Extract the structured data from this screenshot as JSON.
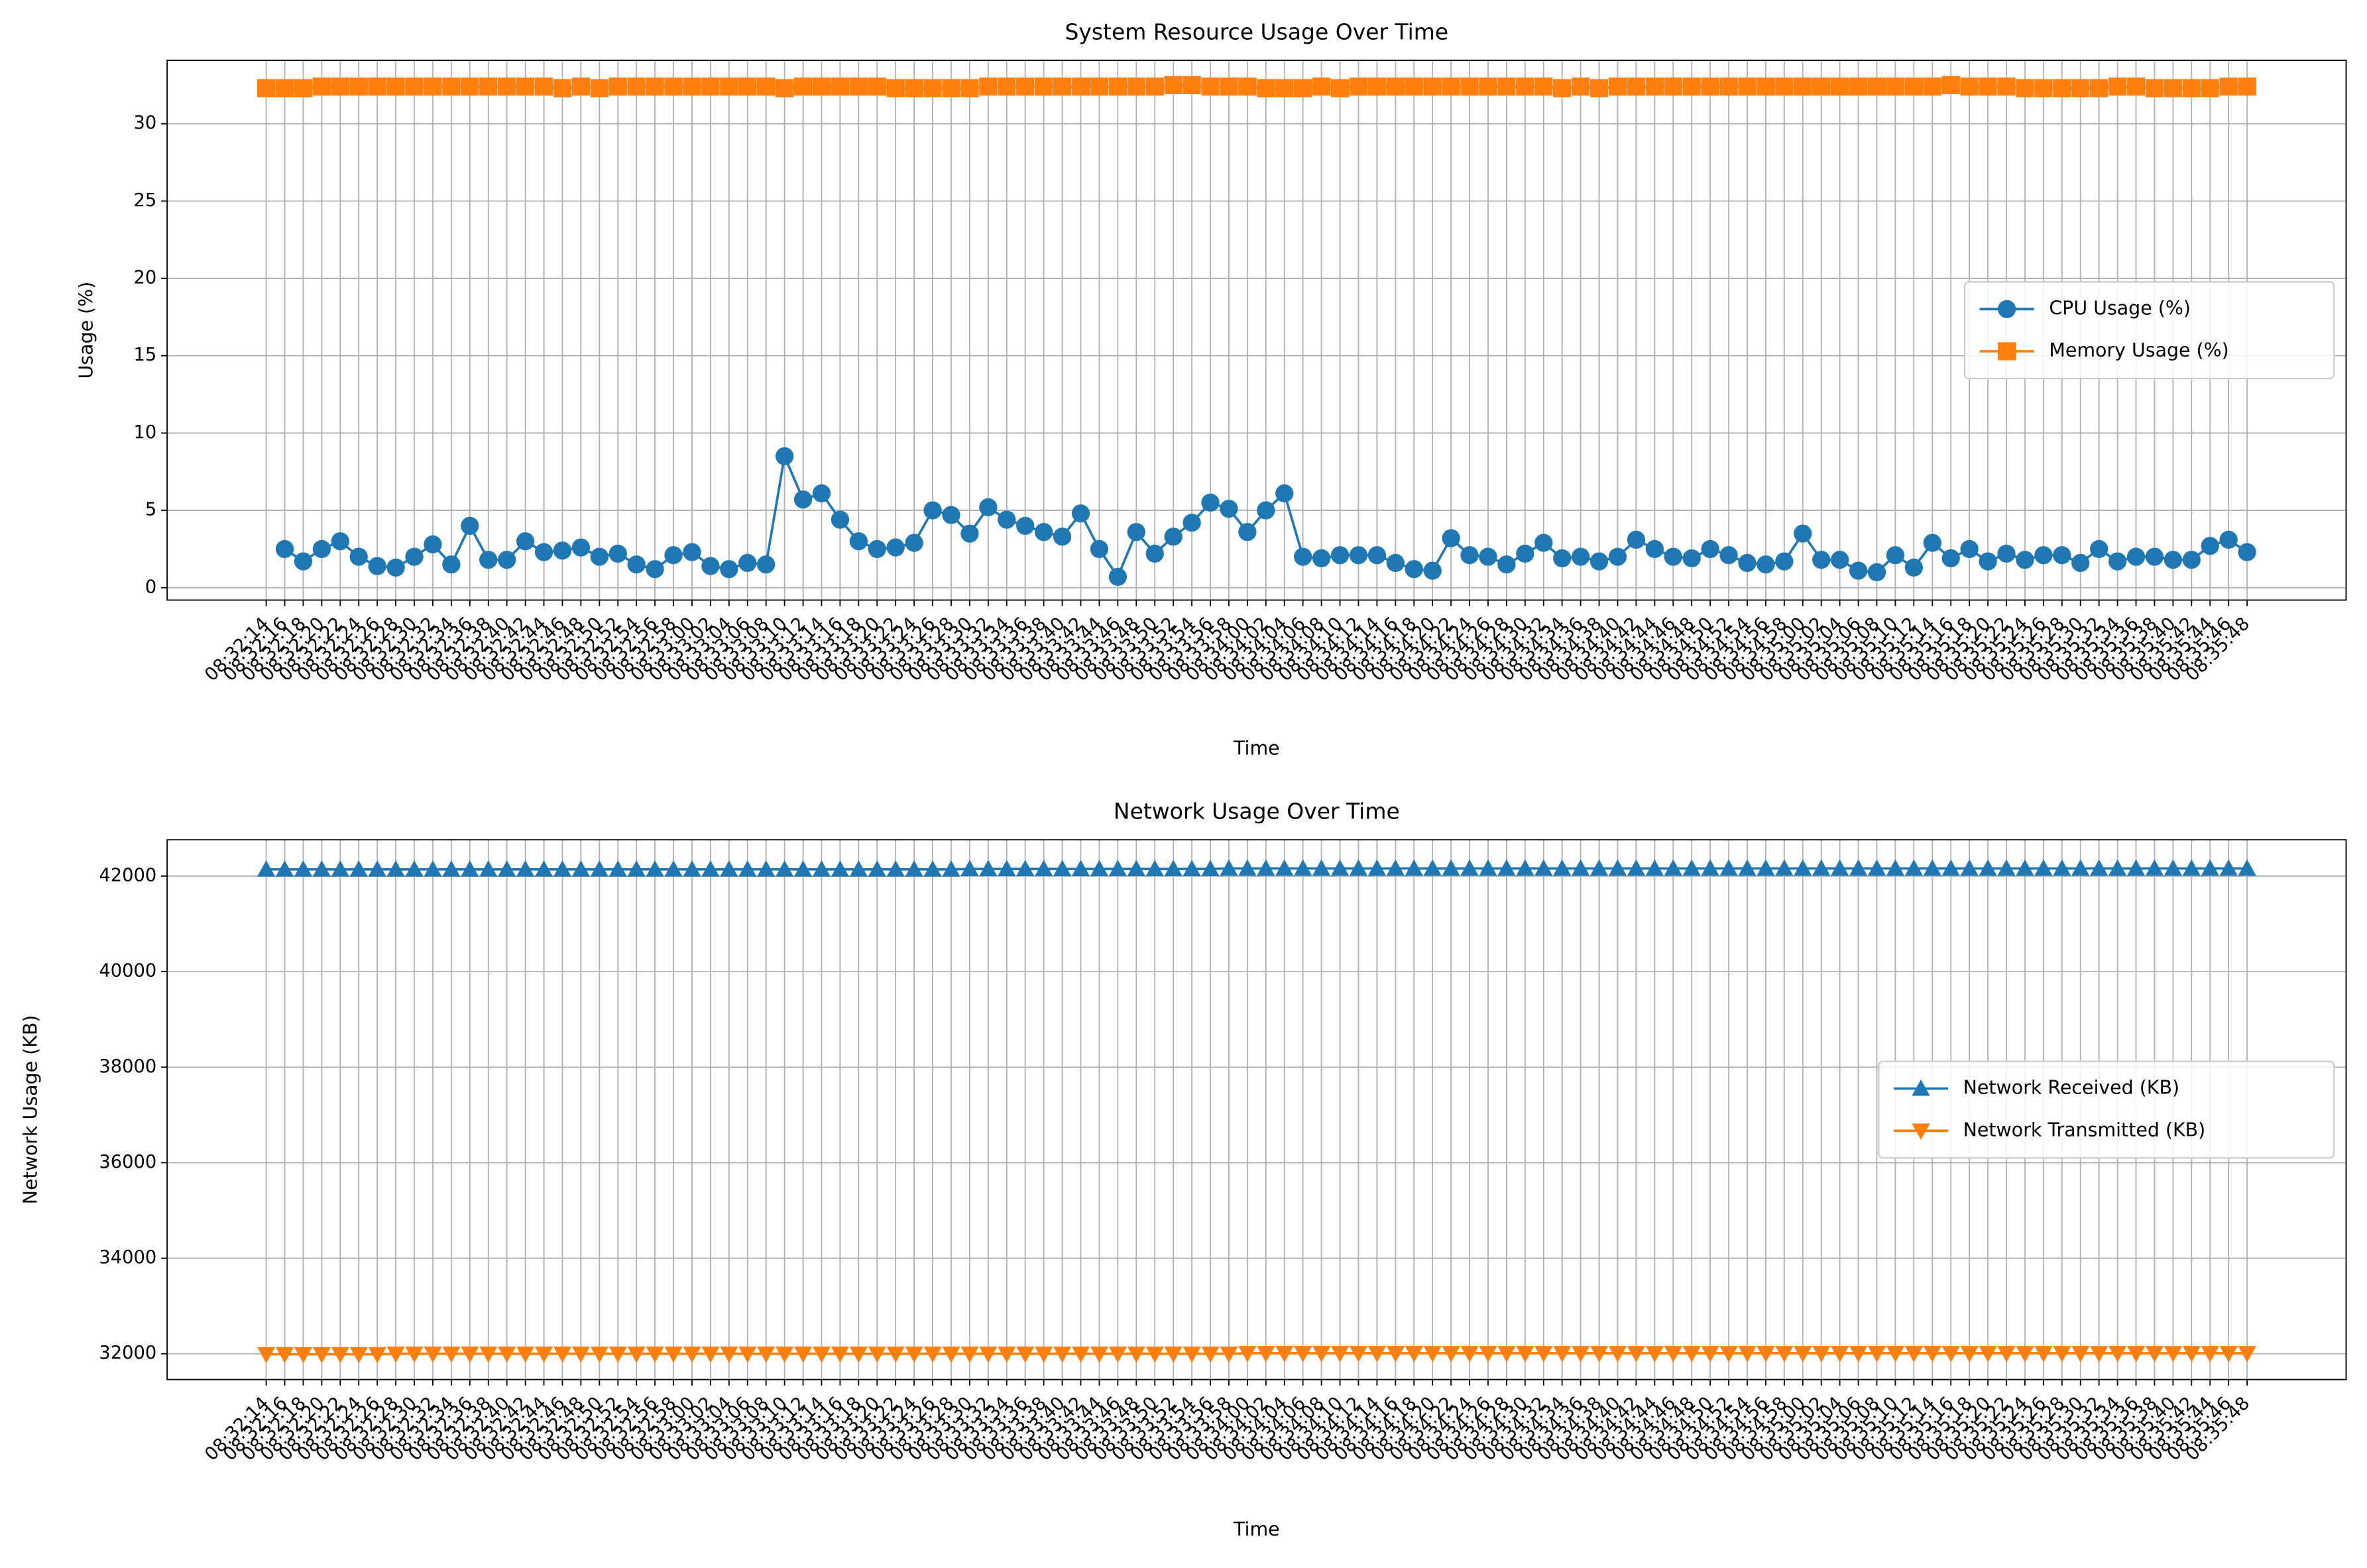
{
  "chart_data": [
    {
      "type": "line",
      "title": "System Resource Usage Over Time",
      "xlabel": "Time",
      "ylabel": "Usage (%)",
      "categories": [
        "08:32:14",
        "08:32:16",
        "08:32:18",
        "08:32:20",
        "08:32:22",
        "08:32:24",
        "08:32:26",
        "08:32:28",
        "08:32:30",
        "08:32:32",
        "08:32:34",
        "08:32:36",
        "08:32:38",
        "08:32:40",
        "08:32:42",
        "08:32:44",
        "08:32:46",
        "08:32:48",
        "08:32:50",
        "08:32:52",
        "08:32:54",
        "08:32:56",
        "08:32:58",
        "08:33:00",
        "08:33:02",
        "08:33:04",
        "08:33:06",
        "08:33:08",
        "08:33:10",
        "08:33:12",
        "08:33:14",
        "08:33:16",
        "08:33:18",
        "08:33:20",
        "08:33:22",
        "08:33:24",
        "08:33:26",
        "08:33:28",
        "08:33:30",
        "08:33:32",
        "08:33:34",
        "08:33:36",
        "08:33:38",
        "08:33:40",
        "08:33:42",
        "08:33:44",
        "08:33:46",
        "08:33:48",
        "08:33:50",
        "08:33:52",
        "08:33:54",
        "08:33:56",
        "08:33:58",
        "08:34:00",
        "08:34:02",
        "08:34:04",
        "08:34:06",
        "08:34:08",
        "08:34:10",
        "08:34:12",
        "08:34:14",
        "08:34:16",
        "08:34:18",
        "08:34:20",
        "08:34:22",
        "08:34:24",
        "08:34:26",
        "08:34:28",
        "08:34:30",
        "08:34:32",
        "08:34:34",
        "08:34:36",
        "08:34:38",
        "08:34:40",
        "08:34:42",
        "08:34:44",
        "08:34:46",
        "08:34:48",
        "08:34:50",
        "08:34:52",
        "08:34:54",
        "08:34:56",
        "08:34:58",
        "08:35:00",
        "08:35:02",
        "08:35:04",
        "08:35:06",
        "08:35:08",
        "08:35:10",
        "08:35:12",
        "08:35:14",
        "08:35:16",
        "08:35:18",
        "08:35:20",
        "08:35:22",
        "08:35:24",
        "08:35:26",
        "08:35:28",
        "08:35:30",
        "08:35:32",
        "08:35:34",
        "08:35:36",
        "08:35:38",
        "08:35:40",
        "08:35:42",
        "08:35:44",
        "08:35:46",
        "08:35:48"
      ],
      "series": [
        {
          "name": "CPU Usage (%)",
          "color": "#1f77b4",
          "marker": "circle",
          "values": [
            null,
            2.5,
            1.7,
            2.5,
            3.0,
            2.0,
            1.4,
            1.3,
            2.0,
            2.8,
            1.5,
            4.0,
            1.8,
            1.8,
            3.0,
            2.3,
            2.4,
            2.6,
            2.0,
            2.2,
            1.5,
            1.2,
            2.1,
            2.3,
            1.4,
            1.2,
            1.6,
            1.5,
            8.5,
            5.7,
            6.1,
            4.4,
            3.0,
            2.5,
            2.6,
            2.9,
            5.0,
            4.7,
            3.5,
            5.2,
            4.4,
            4.0,
            3.6,
            3.3,
            4.8,
            2.5,
            0.7,
            3.6,
            2.2,
            3.3,
            4.2,
            5.5,
            5.1,
            3.6,
            5.0,
            6.1,
            2.0,
            1.9,
            2.1,
            2.1,
            2.1,
            1.6,
            1.2,
            1.1,
            3.2,
            2.1,
            2.0,
            1.5,
            2.2,
            2.9,
            1.9,
            2.0,
            1.7,
            2.0,
            3.1,
            2.5,
            2.0,
            1.9,
            2.5,
            2.1,
            1.6,
            1.5,
            1.7,
            3.5,
            1.8,
            1.8,
            1.1,
            1.0,
            2.1,
            1.3,
            2.9,
            1.9,
            2.5,
            1.7,
            2.2,
            1.8,
            2.1,
            2.1,
            1.6,
            2.5,
            1.7,
            2.0,
            2.0,
            1.8,
            1.8,
            2.7,
            3.1,
            2.3
          ]
        },
        {
          "name": "Memory Usage (%)",
          "color": "#ff7f0e",
          "marker": "square",
          "values": [
            32.3,
            32.3,
            32.3,
            32.4,
            32.4,
            32.4,
            32.4,
            32.4,
            32.4,
            32.4,
            32.4,
            32.4,
            32.4,
            32.4,
            32.4,
            32.4,
            32.3,
            32.4,
            32.3,
            32.4,
            32.4,
            32.4,
            32.4,
            32.4,
            32.4,
            32.4,
            32.4,
            32.4,
            32.3,
            32.4,
            32.4,
            32.4,
            32.4,
            32.4,
            32.3,
            32.3,
            32.3,
            32.3,
            32.3,
            32.4,
            32.4,
            32.4,
            32.4,
            32.4,
            32.4,
            32.4,
            32.4,
            32.4,
            32.4,
            32.5,
            32.5,
            32.4,
            32.4,
            32.4,
            32.3,
            32.3,
            32.3,
            32.4,
            32.3,
            32.4,
            32.4,
            32.4,
            32.4,
            32.4,
            32.4,
            32.4,
            32.4,
            32.4,
            32.4,
            32.4,
            32.3,
            32.4,
            32.3,
            32.4,
            32.4,
            32.4,
            32.4,
            32.4,
            32.4,
            32.4,
            32.4,
            32.4,
            32.4,
            32.4,
            32.4,
            32.4,
            32.4,
            32.4,
            32.4,
            32.4,
            32.4,
            32.5,
            32.4,
            32.4,
            32.4,
            32.3,
            32.3,
            32.3,
            32.3,
            32.3,
            32.4,
            32.4,
            32.3,
            32.3,
            32.3,
            32.3,
            32.4,
            32.4
          ]
        }
      ],
      "ylim": [
        -0.8,
        34.1
      ],
      "yticks": [
        0,
        5,
        10,
        15,
        20,
        25,
        30
      ],
      "grid": true,
      "legend": "center right"
    },
    {
      "type": "line",
      "title": "Network Usage Over Time",
      "xlabel": "Time",
      "ylabel": "Network Usage (KB)",
      "categories": [
        "08:32:14",
        "08:32:16",
        "08:32:18",
        "08:32:20",
        "08:32:22",
        "08:32:24",
        "08:32:26",
        "08:32:28",
        "08:32:30",
        "08:32:32",
        "08:32:34",
        "08:32:36",
        "08:32:38",
        "08:32:40",
        "08:32:42",
        "08:32:44",
        "08:32:46",
        "08:32:48",
        "08:32:50",
        "08:32:52",
        "08:32:54",
        "08:32:56",
        "08:32:58",
        "08:33:00",
        "08:33:02",
        "08:33:04",
        "08:33:06",
        "08:33:08",
        "08:33:10",
        "08:33:12",
        "08:33:14",
        "08:33:16",
        "08:33:18",
        "08:33:20",
        "08:33:22",
        "08:33:24",
        "08:33:26",
        "08:33:28",
        "08:33:30",
        "08:33:32",
        "08:33:34",
        "08:33:36",
        "08:33:38",
        "08:33:40",
        "08:33:42",
        "08:33:44",
        "08:33:46",
        "08:33:48",
        "08:33:50",
        "08:33:52",
        "08:33:54",
        "08:33:56",
        "08:33:58",
        "08:34:00",
        "08:34:02",
        "08:34:04",
        "08:34:06",
        "08:34:08",
        "08:34:10",
        "08:34:12",
        "08:34:14",
        "08:34:16",
        "08:34:18",
        "08:34:20",
        "08:34:22",
        "08:34:24",
        "08:34:26",
        "08:34:28",
        "08:34:30",
        "08:34:32",
        "08:34:34",
        "08:34:36",
        "08:34:38",
        "08:34:40",
        "08:34:42",
        "08:34:44",
        "08:34:46",
        "08:34:48",
        "08:34:50",
        "08:34:52",
        "08:34:54",
        "08:34:56",
        "08:34:58",
        "08:35:00",
        "08:35:02",
        "08:35:04",
        "08:35:06",
        "08:35:08",
        "08:35:10",
        "08:35:12",
        "08:35:14",
        "08:35:16",
        "08:35:18",
        "08:35:20",
        "08:35:22",
        "08:35:24",
        "08:35:26",
        "08:35:28",
        "08:35:30",
        "08:35:32",
        "08:35:34",
        "08:35:36",
        "08:35:38",
        "08:35:40",
        "08:35:42",
        "08:35:44",
        "08:35:46",
        "08:35:48"
      ],
      "series": [
        {
          "name": "Network Received (KB)",
          "color": "#1f77b4",
          "marker": "triangle-up",
          "values": [
            42140,
            42140,
            42140,
            42140,
            42140,
            42140,
            42140,
            42140,
            42140,
            42140,
            42140,
            42140,
            42140,
            42140,
            42140,
            42140,
            42140,
            42140,
            42140,
            42140,
            42140,
            42140,
            42140,
            42140,
            42140,
            42140,
            42140,
            42140,
            42140,
            42140,
            42140,
            42140,
            42140,
            42140,
            42140,
            42140,
            42140,
            42140,
            42150,
            42150,
            42150,
            42150,
            42150,
            42150,
            42150,
            42150,
            42150,
            42150,
            42150,
            42150,
            42150,
            42150,
            42160,
            42160,
            42160,
            42160,
            42160,
            42160,
            42160,
            42160,
            42160,
            42160,
            42160,
            42160,
            42160,
            42160,
            42160,
            42160,
            42160,
            42160,
            42160,
            42160,
            42160,
            42160,
            42160,
            42160,
            42160,
            42160,
            42160,
            42160,
            42160,
            42160,
            42160,
            42160,
            42160,
            42160,
            42160,
            42160,
            42160,
            42160,
            42160,
            42160,
            42160,
            42160,
            42160,
            42160,
            42160,
            42160,
            42160,
            42160,
            42160,
            42160,
            42160,
            42160,
            42160,
            42160,
            42160,
            42160
          ]
        },
        {
          "name": "Network Transmitted (KB)",
          "color": "#ff7f0e",
          "marker": "triangle-down",
          "values": [
            31990,
            31990,
            31990,
            31990,
            31990,
            31990,
            31990,
            32000,
            32000,
            32000,
            32000,
            32000,
            32000,
            32000,
            32000,
            32000,
            32000,
            32000,
            32000,
            32000,
            32000,
            32000,
            32000,
            32000,
            32000,
            32000,
            32000,
            32000,
            32000,
            32000,
            32000,
            32000,
            32000,
            32000,
            32000,
            32000,
            32000,
            32000,
            32000,
            32000,
            32000,
            32000,
            32000,
            32000,
            32000,
            32000,
            32000,
            32000,
            32000,
            32000,
            32000,
            32000,
            32000,
            32010,
            32010,
            32010,
            32010,
            32010,
            32010,
            32010,
            32010,
            32010,
            32010,
            32010,
            32010,
            32010,
            32010,
            32010,
            32010,
            32010,
            32010,
            32010,
            32010,
            32010,
            32010,
            32010,
            32010,
            32010,
            32010,
            32010,
            32010,
            32010,
            32010,
            32010,
            32010,
            32010,
            32010,
            32010,
            32010,
            32010,
            32010,
            32010,
            32010,
            32010,
            32010,
            32010,
            32010,
            32010,
            32010,
            32010,
            32010,
            32010,
            32010,
            32010,
            32010,
            32010,
            32010,
            32010
          ]
        }
      ],
      "ylim": [
        31460,
        42760
      ],
      "yticks": [
        32000,
        34000,
        36000,
        38000,
        40000,
        42000
      ],
      "grid": true,
      "legend": "center right"
    }
  ]
}
